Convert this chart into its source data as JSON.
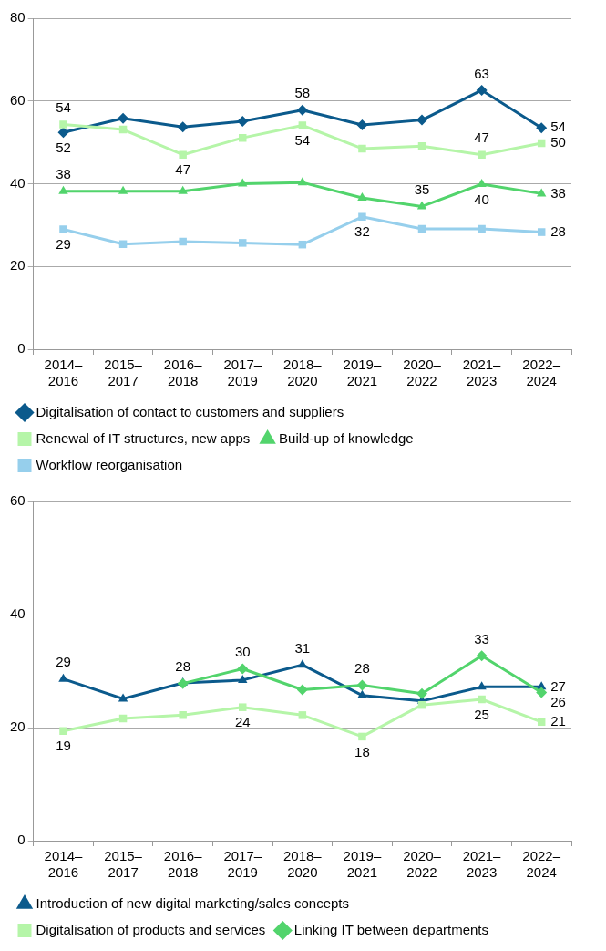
{
  "chart_data": [
    {
      "type": "line",
      "categories": [
        "2014–2016",
        "2015–2017",
        "2016–2018",
        "2017–2019",
        "2018–2020",
        "2019–2021",
        "2020–2022",
        "2021–2023",
        "2022–2024"
      ],
      "ylim": [
        0,
        80
      ],
      "yticks": [
        0,
        20,
        40,
        60,
        80
      ],
      "grid": "y",
      "legend": "bottom",
      "series": [
        {
          "name": "Digitalisation of contact to customers and suppliers",
          "color": "#0b5a8c",
          "marker": "diamond",
          "values": [
            52.4,
            55.8,
            53.7,
            55.1,
            57.8,
            54.2,
            55.4,
            62.6,
            53.5
          ],
          "value_labels": [
            "52",
            null,
            null,
            null,
            "58",
            null,
            null,
            "63",
            "54"
          ]
        },
        {
          "name": "Renewal of IT structures, new apps",
          "color": "#b5f5a8",
          "marker": "square",
          "values": [
            54.3,
            53.1,
            47,
            51.1,
            54.1,
            48.5,
            49.1,
            47,
            49.8
          ],
          "value_labels": [
            "54",
            null,
            "47",
            null,
            "54",
            null,
            null,
            "47",
            "50"
          ]
        },
        {
          "name": "Build-up of knowledge",
          "color": "#52d46c",
          "marker": "triangle",
          "values": [
            38.2,
            38.2,
            38.2,
            40,
            40.3,
            36.6,
            34.5,
            39.9,
            37.6
          ],
          "value_labels": [
            "38",
            null,
            null,
            null,
            null,
            null,
            "35",
            "40",
            "38"
          ]
        },
        {
          "name": "Workflow reorganisation",
          "color": "#96cfec",
          "marker": "square",
          "values": [
            29,
            25.4,
            26,
            25.7,
            25.3,
            32,
            29.1,
            29.1,
            28.3
          ],
          "value_labels": [
            "29",
            null,
            null,
            null,
            null,
            "32",
            null,
            null,
            "28"
          ]
        }
      ]
    },
    {
      "type": "line",
      "categories": [
        "2014–2016",
        "2015–2017",
        "2016–2018",
        "2017–2019",
        "2018–2020",
        "2019–2021",
        "2020–2022",
        "2021–2023",
        "2022–2024"
      ],
      "ylim": [
        0,
        60
      ],
      "yticks": [
        0,
        20,
        40,
        60
      ],
      "grid": "y",
      "legend": "bottom",
      "series": [
        {
          "name": "Introduction of new digital marketing/sales concepts",
          "color": "#0b5a8c",
          "marker": "triangle",
          "values": [
            28.6,
            25.1,
            27.9,
            28.4,
            31.1,
            25.7,
            24.7,
            27.2,
            27.2
          ],
          "value_labels": [
            "29",
            null,
            "28",
            null,
            "31",
            null,
            null,
            null,
            "27"
          ]
        },
        {
          "name": "Digitalisation of products and services",
          "color": "#b5f5a8",
          "marker": "square",
          "values": [
            19.4,
            21.6,
            22.2,
            23.6,
            22.2,
            18.4,
            24,
            25,
            21
          ],
          "value_labels": [
            "19",
            null,
            null,
            "24",
            null,
            "18",
            null,
            "25",
            "21"
          ]
        },
        {
          "name": "Linking IT between departments",
          "color": "#52d46c",
          "marker": "diamond",
          "values": [
            null,
            null,
            27.8,
            30.4,
            26.7,
            27.5,
            26,
            32.7,
            26.2
          ],
          "value_labels": [
            null,
            null,
            null,
            "30",
            null,
            "28",
            null,
            "33",
            "26"
          ]
        }
      ]
    }
  ]
}
